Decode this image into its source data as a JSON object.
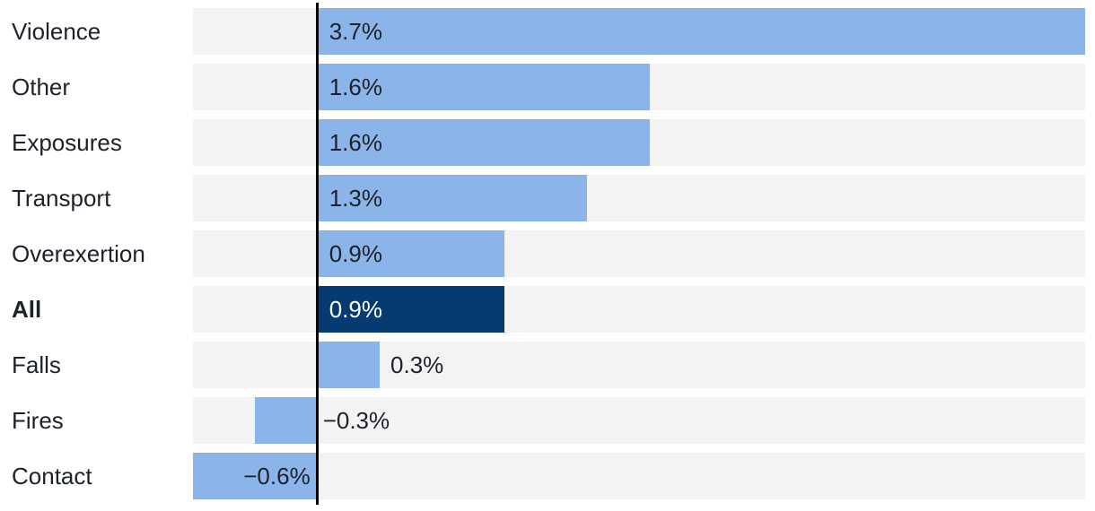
{
  "chart_data": {
    "type": "bar",
    "orientation": "horizontal",
    "title": "",
    "xlabel": "",
    "ylabel": "",
    "unit": "%",
    "xlim": [
      -0.6,
      3.7
    ],
    "grid": false,
    "legend": "none",
    "baseline": 0,
    "categories": [
      "Violence",
      "Other",
      "Exposures",
      "Transport",
      "Overexertion",
      "All",
      "Falls",
      "Fires",
      "Contact"
    ],
    "values": [
      3.7,
      1.6,
      1.6,
      1.3,
      0.9,
      0.9,
      0.3,
      -0.3,
      -0.6
    ],
    "highlighted_category": "All",
    "rows": [
      {
        "category": "Violence",
        "value": 3.7,
        "display": "3.7%",
        "emphasis": false
      },
      {
        "category": "Other",
        "value": 1.6,
        "display": "1.6%",
        "emphasis": false
      },
      {
        "category": "Exposures",
        "value": 1.6,
        "display": "1.6%",
        "emphasis": false
      },
      {
        "category": "Transport",
        "value": 1.3,
        "display": "1.3%",
        "emphasis": false
      },
      {
        "category": "Overexertion",
        "value": 0.9,
        "display": "0.9%",
        "emphasis": false
      },
      {
        "category": "All",
        "value": 0.9,
        "display": "0.9%",
        "emphasis": true
      },
      {
        "category": "Falls",
        "value": 0.3,
        "display": "0.3%",
        "emphasis": false
      },
      {
        "category": "Fires",
        "value": -0.3,
        "display": "−0.3%",
        "emphasis": false
      },
      {
        "category": "Contact",
        "value": -0.6,
        "display": "−0.6%",
        "emphasis": false
      }
    ]
  },
  "colors": {
    "bar_light": "#8bb5e9",
    "bar_highlight": "#053b70",
    "row_background": "#f3f3f4",
    "zero_line": "#000000",
    "text": "#1d2129",
    "text_on_dark": "#ffffff"
  }
}
